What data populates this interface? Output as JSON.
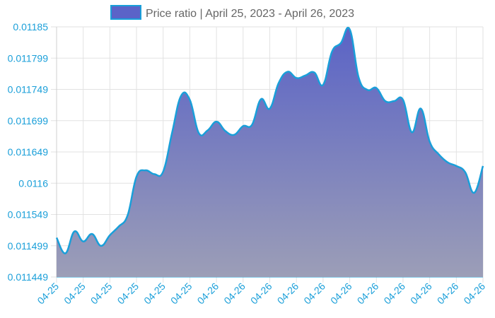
{
  "chart_data": {
    "type": "area",
    "legend": {
      "label": "Price ratio | April 25, 2023 - April 26, 2023",
      "position": "top"
    },
    "x_tick_labels": [
      "04-25",
      "04-25",
      "04-25",
      "04-25",
      "04-25",
      "04-25",
      "04-26",
      "04-26",
      "04-26",
      "04-26",
      "04-26",
      "04-26",
      "04-26",
      "04-26",
      "04-26",
      "04-26",
      "04-26"
    ],
    "y_tick_labels": [
      "0.01185",
      "0.011799",
      "0.011749",
      "0.011699",
      "0.011649",
      "0.0116",
      "0.011549",
      "0.011499",
      "0.011449"
    ],
    "ylim": [
      0.011449,
      0.01185
    ],
    "grid": true,
    "series": [
      {
        "values": [
          0.011512,
          0.011487,
          0.011522,
          0.011506,
          0.011518,
          0.011499,
          0.011516,
          0.01153,
          0.011548,
          0.01161,
          0.01162,
          0.011614,
          0.011618,
          0.01168,
          0.011739,
          0.011733,
          0.01168,
          0.011684,
          0.011698,
          0.011683,
          0.011677,
          0.011691,
          0.011693,
          0.011734,
          0.011719,
          0.01176,
          0.011778,
          0.011768,
          0.011772,
          0.011777,
          0.011757,
          0.01181,
          0.011824,
          0.011846,
          0.011769,
          0.011749,
          0.011752,
          0.011731,
          0.011731,
          0.011733,
          0.011681,
          0.011719,
          0.011666,
          0.011646,
          0.011633,
          0.011627,
          0.011617,
          0.011584,
          0.011627
        ]
      }
    ],
    "colors": {
      "line": "#1a9fd9",
      "fill_top": "#5a63c6",
      "fill_bottom": "#9c9eb7",
      "legend_swatch": "#5b63c8",
      "tick_text": "#1a9fd9",
      "legend_text": "#666666",
      "grid": "#e2e2e2"
    }
  }
}
